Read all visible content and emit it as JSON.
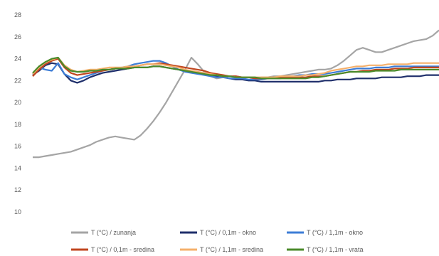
{
  "chart_data": {
    "type": "line",
    "title": "",
    "xlabel": "",
    "ylabel": "",
    "ylim": [
      10,
      28
    ],
    "y_ticks": [
      "28",
      "26",
      "24",
      "22",
      "20",
      "18",
      "16",
      "14",
      "12",
      "10"
    ],
    "grid": false,
    "legend_position": "bottom",
    "x": [
      0,
      1,
      2,
      3,
      4,
      5,
      6,
      7,
      8,
      9,
      10,
      11,
      12,
      13,
      14,
      15,
      16,
      17,
      18,
      19,
      20,
      21,
      22,
      23,
      24,
      25,
      26,
      27,
      28,
      29,
      30,
      31,
      32,
      33,
      34,
      35,
      36,
      37,
      38,
      39,
      40,
      41,
      42,
      43,
      44,
      45,
      46,
      47,
      48,
      49,
      50,
      51,
      52,
      53,
      54,
      55,
      56,
      57,
      58,
      59,
      60,
      61,
      62,
      63,
      64
    ],
    "series": [
      {
        "name": "T (°C) / zunanja",
        "color": "#a5a5a5",
        "values": [
          15.0,
          15.0,
          15.1,
          15.2,
          15.3,
          15.4,
          15.5,
          15.7,
          15.9,
          16.1,
          16.4,
          16.6,
          16.8,
          16.9,
          16.8,
          16.7,
          16.6,
          17.0,
          17.6,
          18.3,
          19.1,
          20.0,
          21.0,
          22.0,
          23.0,
          24.1,
          23.5,
          22.8,
          22.4,
          22.2,
          22.3,
          22.4,
          22.4,
          22.3,
          22.3,
          22.2,
          22.3,
          22.3,
          22.4,
          22.4,
          22.5,
          22.6,
          22.7,
          22.8,
          22.9,
          23.0,
          23.0,
          23.1,
          23.4,
          23.8,
          24.3,
          24.8,
          25.0,
          24.8,
          24.6,
          24.6,
          24.8,
          25.0,
          25.2,
          25.4,
          25.6,
          25.7,
          25.8,
          26.1,
          26.6
        ]
      },
      {
        "name": "T (°C) / 0,1m - okno",
        "color": "#1f2f6b",
        "values": [
          22.5,
          22.9,
          23.4,
          23.6,
          23.5,
          22.6,
          22.0,
          21.8,
          22.0,
          22.3,
          22.5,
          22.7,
          22.8,
          22.9,
          23.0,
          23.1,
          23.2,
          23.2,
          23.2,
          23.3,
          23.3,
          23.2,
          23.1,
          23.0,
          22.9,
          22.8,
          22.7,
          22.6,
          22.5,
          22.4,
          22.3,
          22.2,
          22.1,
          22.1,
          22.0,
          22.0,
          21.9,
          21.9,
          21.9,
          21.9,
          21.9,
          21.9,
          21.9,
          21.9,
          21.9,
          21.9,
          22.0,
          22.0,
          22.1,
          22.1,
          22.1,
          22.2,
          22.2,
          22.2,
          22.2,
          22.3,
          22.3,
          22.3,
          22.3,
          22.4,
          22.4,
          22.4,
          22.5,
          22.5,
          22.5
        ]
      },
      {
        "name": "T (°C) / 1,1m - okno",
        "color": "#3d7dd6",
        "values": [
          22.6,
          23.2,
          23.0,
          22.9,
          23.6,
          22.6,
          22.3,
          22.1,
          22.3,
          22.5,
          22.7,
          22.9,
          23.0,
          23.1,
          23.2,
          23.3,
          23.5,
          23.6,
          23.7,
          23.8,
          23.8,
          23.6,
          23.3,
          23.0,
          22.8,
          22.7,
          22.6,
          22.5,
          22.4,
          22.3,
          22.3,
          22.2,
          22.2,
          22.2,
          22.1,
          22.1,
          22.1,
          22.2,
          22.2,
          22.2,
          22.3,
          22.4,
          22.5,
          22.5,
          22.6,
          22.6,
          22.6,
          22.7,
          22.8,
          22.9,
          23.0,
          23.1,
          23.1,
          23.1,
          23.2,
          23.2,
          23.2,
          23.3,
          23.3,
          23.3,
          23.3,
          23.3,
          23.3,
          23.3,
          23.3
        ]
      },
      {
        "name": "T (°C) / 0,1m - sredina",
        "color": "#c0461f",
        "values": [
          22.4,
          23.0,
          23.5,
          23.8,
          24.0,
          23.2,
          22.7,
          22.5,
          22.6,
          22.7,
          22.8,
          22.9,
          23.0,
          23.1,
          23.1,
          23.2,
          23.3,
          23.4,
          23.5,
          23.5,
          23.6,
          23.5,
          23.4,
          23.3,
          23.2,
          23.1,
          23.0,
          22.9,
          22.7,
          22.6,
          22.5,
          22.4,
          22.4,
          22.3,
          22.3,
          22.2,
          22.2,
          22.2,
          22.3,
          22.3,
          22.3,
          22.3,
          22.3,
          22.3,
          22.4,
          22.4,
          22.4,
          22.5,
          22.6,
          22.7,
          22.8,
          22.8,
          22.9,
          22.9,
          23.0,
          23.0,
          23.0,
          23.1,
          23.1,
          23.1,
          23.2,
          23.2,
          23.2,
          23.2,
          23.2
        ]
      },
      {
        "name": "T (°C) / 1,1m - sredina",
        "color": "#f5b06b",
        "values": [
          22.6,
          23.2,
          23.7,
          23.9,
          24.1,
          23.4,
          23.0,
          22.8,
          22.9,
          23.0,
          23.0,
          23.1,
          23.2,
          23.2,
          23.2,
          23.3,
          23.3,
          23.4,
          23.5,
          23.5,
          23.5,
          23.4,
          23.3,
          23.2,
          23.0,
          22.9,
          22.8,
          22.7,
          22.6,
          22.5,
          22.4,
          22.4,
          22.3,
          22.3,
          22.3,
          22.3,
          22.3,
          22.3,
          22.3,
          22.4,
          22.4,
          22.4,
          22.4,
          22.5,
          22.5,
          22.6,
          22.7,
          22.9,
          23.0,
          23.1,
          23.2,
          23.3,
          23.3,
          23.4,
          23.4,
          23.4,
          23.5,
          23.5,
          23.5,
          23.5,
          23.6,
          23.6,
          23.6,
          23.6,
          23.6
        ]
      },
      {
        "name": "T (°C) / 1,1m - vrata",
        "color": "#4a8a2a",
        "values": [
          22.7,
          23.3,
          23.7,
          24.0,
          24.1,
          23.3,
          22.9,
          22.8,
          22.8,
          22.9,
          22.9,
          23.0,
          23.0,
          23.1,
          23.1,
          23.1,
          23.2,
          23.2,
          23.2,
          23.3,
          23.3,
          23.2,
          23.1,
          23.0,
          22.9,
          22.8,
          22.7,
          22.6,
          22.5,
          22.5,
          22.4,
          22.4,
          22.3,
          22.3,
          22.3,
          22.3,
          22.2,
          22.2,
          22.2,
          22.2,
          22.2,
          22.2,
          22.2,
          22.2,
          22.3,
          22.3,
          22.4,
          22.5,
          22.6,
          22.7,
          22.8,
          22.8,
          22.8,
          22.8,
          22.9,
          22.9,
          22.9,
          22.9,
          23.0,
          23.0,
          23.0,
          23.0,
          23.0,
          23.0,
          23.0
        ]
      }
    ]
  }
}
